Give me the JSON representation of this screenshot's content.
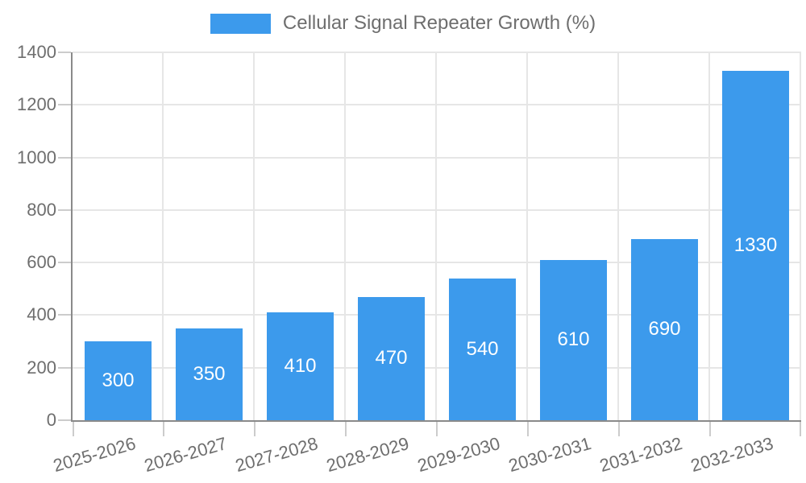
{
  "chart_data": {
    "type": "bar",
    "title": "Cellular Signal Repeater Growth (%)",
    "legend": [
      "Cellular Signal Repeater Growth (%)"
    ],
    "legend_position": "top-center",
    "categories": [
      "2025-2026",
      "2026-2027",
      "2027-2028",
      "2028-2029",
      "2029-2030",
      "2030-2031",
      "2031-2032",
      "2032-2033"
    ],
    "values": [
      300,
      350,
      410,
      470,
      540,
      610,
      690,
      1330
    ],
    "bar_value_labels": [
      "300",
      "350",
      "410",
      "470",
      "540",
      "610",
      "690",
      "1330"
    ],
    "xlabel": "",
    "ylabel": "",
    "ylim": [
      0,
      1400
    ],
    "yticks": [
      0,
      200,
      400,
      600,
      800,
      1000,
      1200,
      1400
    ],
    "grid": true,
    "x_tick_label_rotation_deg": -16,
    "colors": {
      "bar": "#3C9AEC",
      "grid": "#E6E6E6",
      "tick": "#CCCCCC",
      "axis": "#8A8A8A",
      "text": "#6E6E6E",
      "bar_label_text": "#FFFFFF"
    }
  }
}
